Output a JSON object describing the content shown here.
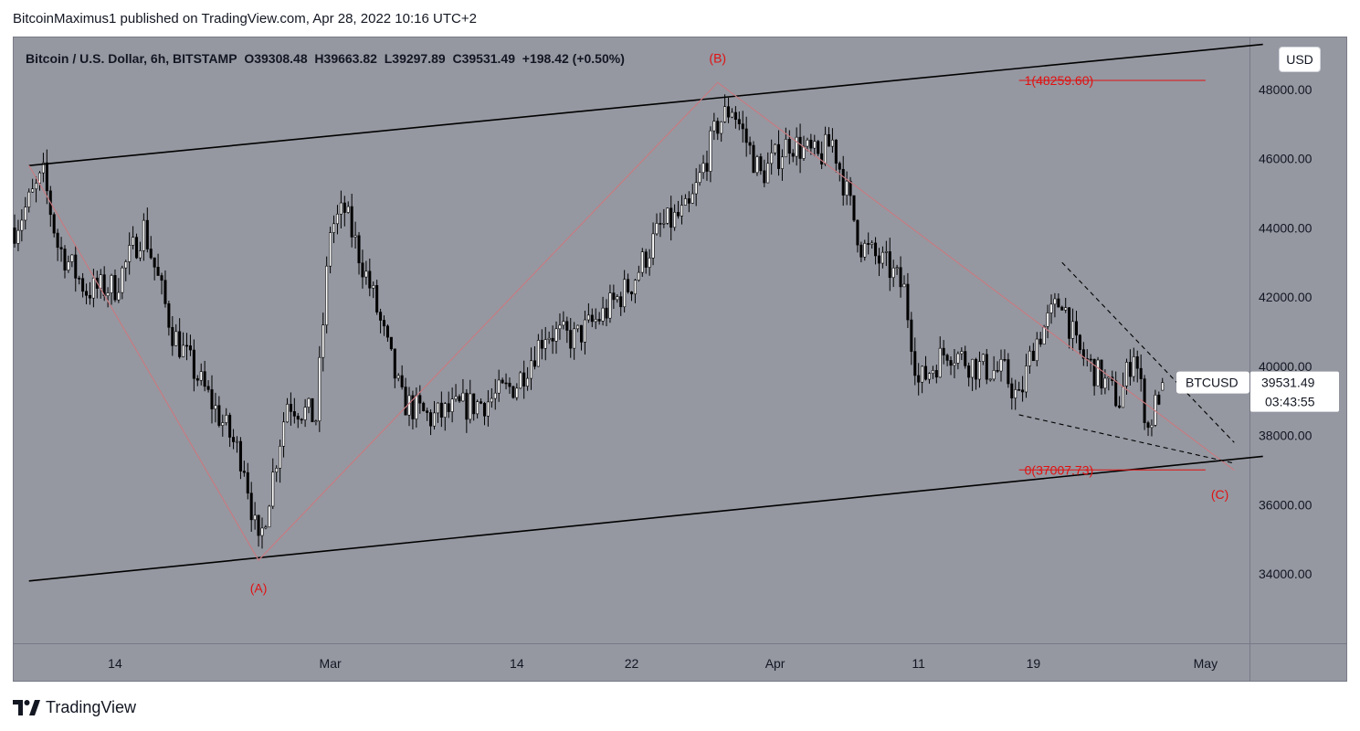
{
  "header": {
    "publish_line": "BitcoinMaximus1 published on TradingView.com, Apr 28, 2022 10:16 UTC+2"
  },
  "legend": {
    "symbol": "Bitcoin / U.S. Dollar, 6h, BITSTAMP",
    "o_label": "O",
    "o_value": "39308.48",
    "h_label": "H",
    "h_value": "39663.82",
    "l_label": "L",
    "l_value": "39297.89",
    "c_label": "C",
    "c_value": "39531.49",
    "change": "+198.42 (+0.50%)"
  },
  "currency_button": "USD",
  "price_badge": {
    "symbol": "BTCUSD",
    "price": "39531.49",
    "countdown": "03:43:55"
  },
  "footer": {
    "brand": "TradingView"
  },
  "colors": {
    "plot_bg": "#9598a1",
    "bull": "#ffffff",
    "bear": "#000000",
    "annotation": "#e11111",
    "wave_line": "#c77b82"
  },
  "chart_data": {
    "type": "candlestick",
    "timeframe": "6h",
    "ylim": [
      32000,
      49500
    ],
    "y_ticks": [
      34000,
      36000,
      38000,
      40000,
      42000,
      44000,
      46000,
      48000
    ],
    "y_tick_labels": [
      "34000.00",
      "36000.00",
      "38000.00",
      "40000.00",
      "42000.00",
      "44000.00",
      "46000.00",
      "48000.00"
    ],
    "x_range_days": [
      "2022-02-07",
      "2022-05-04"
    ],
    "x_ticks": [
      {
        "label": "14",
        "date": "2022-02-14"
      },
      {
        "label": "Mar",
        "date": "2022-03-01"
      },
      {
        "label": "14",
        "date": "2022-03-14"
      },
      {
        "label": "22",
        "date": "2022-03-22"
      },
      {
        "label": "Apr",
        "date": "2022-04-01"
      },
      {
        "label": "11",
        "date": "2022-04-11"
      },
      {
        "label": "19",
        "date": "2022-04-19"
      },
      {
        "label": "May",
        "date": "2022-05-01"
      }
    ],
    "price_path": [
      [
        "2022-02-07",
        44000
      ],
      [
        "2022-02-09",
        45500
      ],
      [
        "2022-02-10",
        43500
      ],
      [
        "2022-02-12",
        42200
      ],
      [
        "2022-02-14",
        42300
      ],
      [
        "2022-02-16",
        44000
      ],
      [
        "2022-02-18",
        41000
      ],
      [
        "2022-02-20",
        39500
      ],
      [
        "2022-02-22",
        38000
      ],
      [
        "2022-02-23",
        37200
      ],
      [
        "2022-02-24",
        34700
      ],
      [
        "2022-02-26",
        39000
      ],
      [
        "2022-02-28",
        38500
      ],
      [
        "2022-03-01",
        44000
      ],
      [
        "2022-03-02",
        44500
      ],
      [
        "2022-03-04",
        42000
      ],
      [
        "2022-03-06",
        39000
      ],
      [
        "2022-03-08",
        38500
      ],
      [
        "2022-03-10",
        38800
      ],
      [
        "2022-03-12",
        39000
      ],
      [
        "2022-03-14",
        39500
      ],
      [
        "2022-03-16",
        41000
      ],
      [
        "2022-03-18",
        40800
      ],
      [
        "2022-03-20",
        41500
      ],
      [
        "2022-03-22",
        42400
      ],
      [
        "2022-03-24",
        44000
      ],
      [
        "2022-03-26",
        44500
      ],
      [
        "2022-03-28",
        47000
      ],
      [
        "2022-03-29",
        47500
      ],
      [
        "2022-03-31",
        45500
      ],
      [
        "2022-04-02",
        46500
      ],
      [
        "2022-04-04",
        46000
      ],
      [
        "2022-04-05",
        46500
      ],
      [
        "2022-04-07",
        43500
      ],
      [
        "2022-04-09",
        42800
      ],
      [
        "2022-04-10",
        42200
      ],
      [
        "2022-04-11",
        39500
      ],
      [
        "2022-04-13",
        40500
      ],
      [
        "2022-04-15",
        40000
      ],
      [
        "2022-04-17",
        39800
      ],
      [
        "2022-04-18",
        39000
      ],
      [
        "2022-04-19",
        40600
      ],
      [
        "2022-04-21",
        42000
      ],
      [
        "2022-04-22",
        40500
      ],
      [
        "2022-04-24",
        39500
      ],
      [
        "2022-04-25",
        39000
      ],
      [
        "2022-04-26",
        40500
      ],
      [
        "2022-04-27",
        38200
      ],
      [
        "2022-04-28",
        39531.49
      ]
    ],
    "last_ohlc": {
      "open": 39308.48,
      "high": 39663.82,
      "low": 39297.89,
      "close": 39531.49
    },
    "channel": {
      "upper": [
        [
          "2022-02-08",
          45800
        ],
        [
          "2022-05-05",
          49300
        ]
      ],
      "lower": [
        [
          "2022-02-08",
          33800
        ],
        [
          "2022-05-05",
          37400
        ]
      ]
    },
    "wave_path": [
      [
        "2022-02-08",
        45800
      ],
      [
        "2022-02-24",
        34400
      ],
      [
        "2022-03-28",
        48200
      ],
      [
        "2022-05-03",
        37000
      ]
    ],
    "wedge": {
      "upper": [
        [
          "2022-04-21",
          43000
        ],
        [
          "2022-05-03",
          37800
        ]
      ],
      "lower": [
        [
          "2022-04-18",
          38600
        ],
        [
          "2022-05-03",
          37200
        ]
      ]
    },
    "wave_labels": [
      {
        "text": "(A)",
        "date": "2022-02-24",
        "price": 33600
      },
      {
        "text": "(B)",
        "date": "2022-03-28",
        "price": 48900
      },
      {
        "text": "(C)",
        "date": "2022-05-02",
        "price": 36300
      }
    ],
    "fib_levels": [
      {
        "label": "1(48259.60)",
        "price": 48259.6,
        "start": "2022-04-18",
        "end": "2022-05-01"
      },
      {
        "label": "0(37007.73)",
        "price": 37007.73,
        "start": "2022-04-18",
        "end": "2022-05-01"
      }
    ]
  }
}
